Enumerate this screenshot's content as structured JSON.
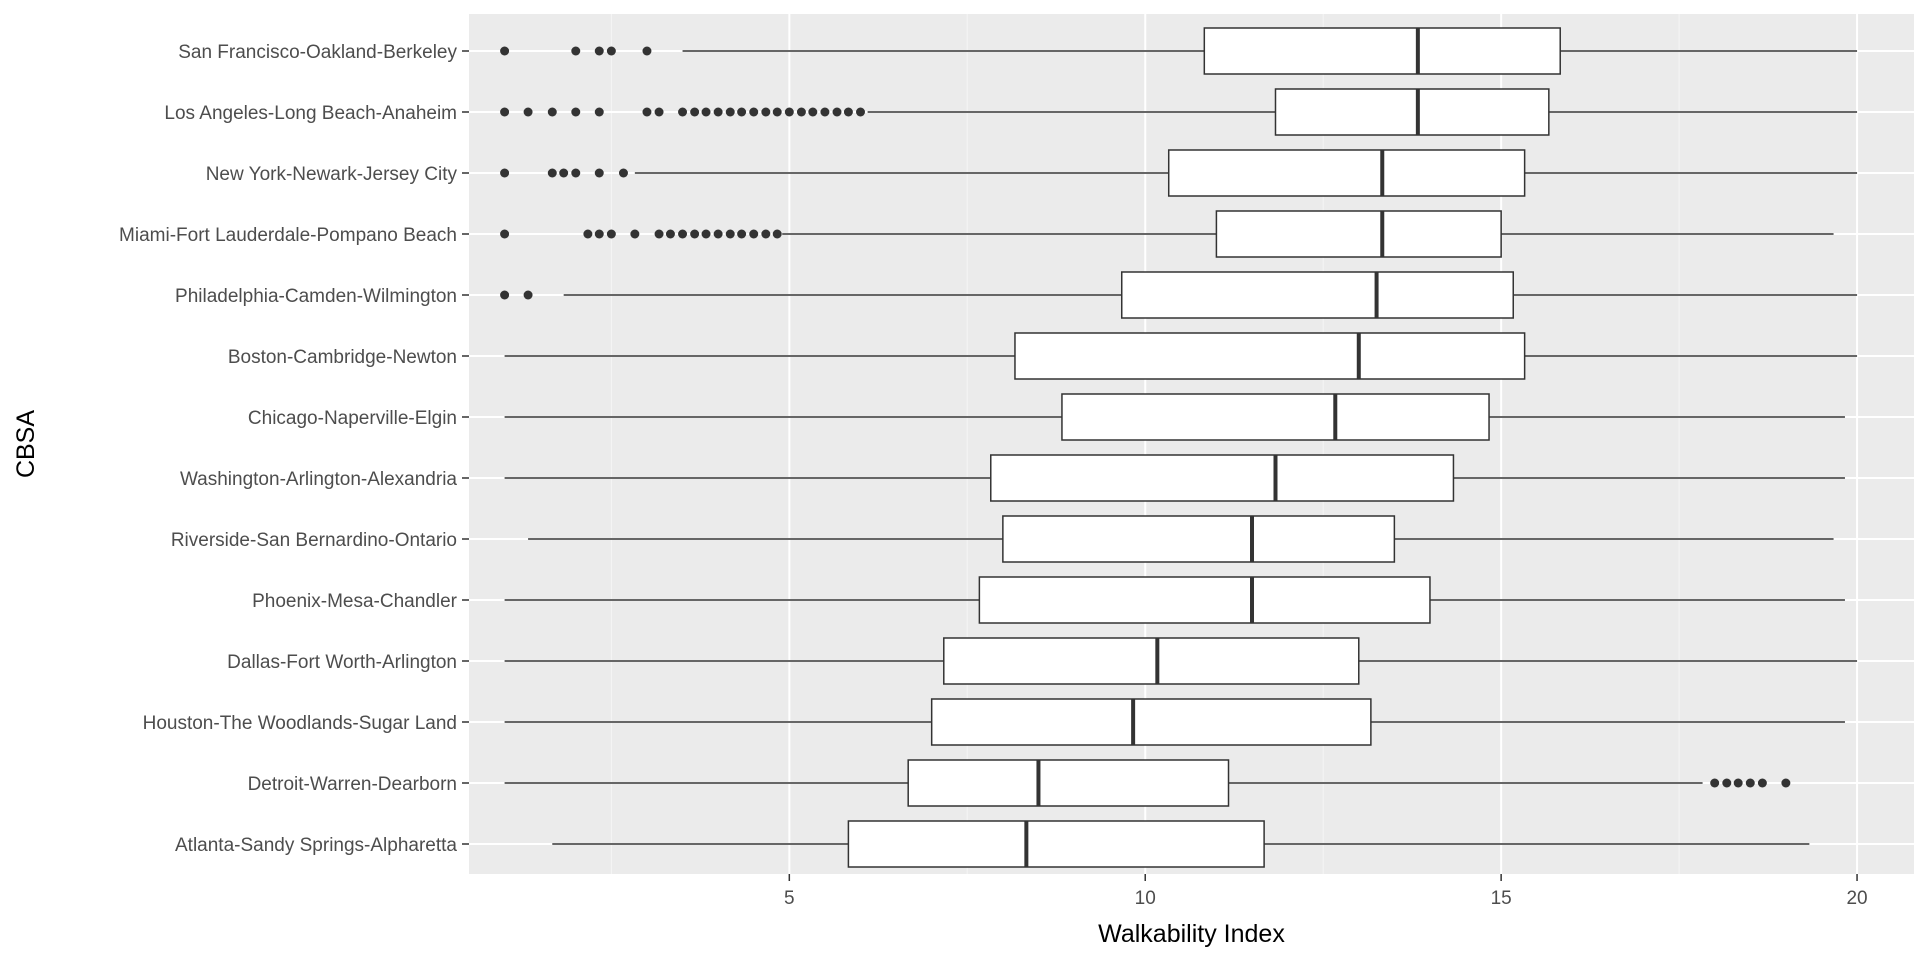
{
  "chart_data": {
    "type": "boxplot",
    "orientation": "horizontal",
    "title": "",
    "xlabel": "Walkability Index",
    "ylabel": "CBSA",
    "xlim": [
      0.5,
      20.8
    ],
    "xticks": [
      5,
      10,
      15,
      20
    ],
    "grid": true,
    "legend": "none",
    "colors": {
      "panel": "#ebebeb",
      "grid_major": "#ffffff",
      "grid_minor": "#f5f5f5",
      "box_fill": "#ffffff",
      "box_stroke": "#333333",
      "outlier": "#333333"
    },
    "categories": [
      "San Francisco-Oakland-Berkeley",
      "Los Angeles-Long Beach-Anaheim",
      "New York-Newark-Jersey City",
      "Miami-Fort Lauderdale-Pompano Beach",
      "Philadelphia-Camden-Wilmington",
      "Boston-Cambridge-Newton",
      "Chicago-Naperville-Elgin",
      "Washington-Arlington-Alexandria",
      "Riverside-San Bernardino-Ontario",
      "Phoenix-Mesa-Chandler",
      "Dallas-Fort Worth-Arlington",
      "Houston-The Woodlands-Sugar Land",
      "Detroit-Warren-Dearborn",
      "Atlanta-Sandy Springs-Alpharetta"
    ],
    "boxes": [
      {
        "whisker_low": 3.5,
        "q1": 10.83,
        "median": 13.83,
        "q3": 15.83,
        "whisker_high": 20.0,
        "outliers": [
          1.0,
          2.0,
          2.33,
          2.5,
          3.0
        ]
      },
      {
        "whisker_low": 6.1,
        "q1": 11.83,
        "median": 13.83,
        "q3": 15.67,
        "whisker_high": 20.0,
        "outliers": [
          1.0,
          1.33,
          1.67,
          2.0,
          2.33,
          3.0,
          3.17,
          3.5,
          3.67,
          3.83,
          4.0,
          4.17,
          4.33,
          4.5,
          4.67,
          4.83,
          5.0,
          5.17,
          5.33,
          5.5,
          5.67,
          5.83,
          6.0
        ]
      },
      {
        "whisker_low": 2.83,
        "q1": 10.33,
        "median": 13.33,
        "q3": 15.33,
        "whisker_high": 20.0,
        "outliers": [
          1.0,
          1.67,
          1.83,
          2.0,
          2.33,
          2.67
        ]
      },
      {
        "whisker_low": 4.9,
        "q1": 11.0,
        "median": 13.33,
        "q3": 15.0,
        "whisker_high": 19.67,
        "outliers": [
          1.0,
          2.17,
          2.33,
          2.5,
          2.83,
          3.17,
          3.33,
          3.5,
          3.67,
          3.83,
          4.0,
          4.17,
          4.33,
          4.5,
          4.67,
          4.83
        ]
      },
      {
        "whisker_low": 1.83,
        "q1": 9.67,
        "median": 13.25,
        "q3": 15.17,
        "whisker_high": 20.0,
        "outliers": [
          1.0,
          1.33
        ]
      },
      {
        "whisker_low": 1.0,
        "q1": 8.17,
        "median": 13.0,
        "q3": 15.33,
        "whisker_high": 20.0,
        "outliers": []
      },
      {
        "whisker_low": 1.0,
        "q1": 8.83,
        "median": 12.67,
        "q3": 14.83,
        "whisker_high": 19.83,
        "outliers": []
      },
      {
        "whisker_low": 1.0,
        "q1": 7.83,
        "median": 11.83,
        "q3": 14.33,
        "whisker_high": 19.83,
        "outliers": []
      },
      {
        "whisker_low": 1.33,
        "q1": 8.0,
        "median": 11.5,
        "q3": 13.5,
        "whisker_high": 19.67,
        "outliers": []
      },
      {
        "whisker_low": 1.0,
        "q1": 7.67,
        "median": 11.5,
        "q3": 14.0,
        "whisker_high": 19.83,
        "outliers": []
      },
      {
        "whisker_low": 1.0,
        "q1": 7.17,
        "median": 10.17,
        "q3": 13.0,
        "whisker_high": 20.0,
        "outliers": []
      },
      {
        "whisker_low": 1.0,
        "q1": 7.0,
        "median": 9.83,
        "q3": 13.17,
        "whisker_high": 19.83,
        "outliers": []
      },
      {
        "whisker_low": 1.0,
        "q1": 6.67,
        "median": 8.5,
        "q3": 11.17,
        "whisker_high": 17.83,
        "outliers": [
          18.0,
          18.17,
          18.33,
          18.5,
          18.67,
          19.0
        ]
      },
      {
        "whisker_low": 1.67,
        "q1": 5.83,
        "median": 8.33,
        "q3": 11.67,
        "whisker_high": 19.33,
        "outliers": []
      }
    ]
  }
}
